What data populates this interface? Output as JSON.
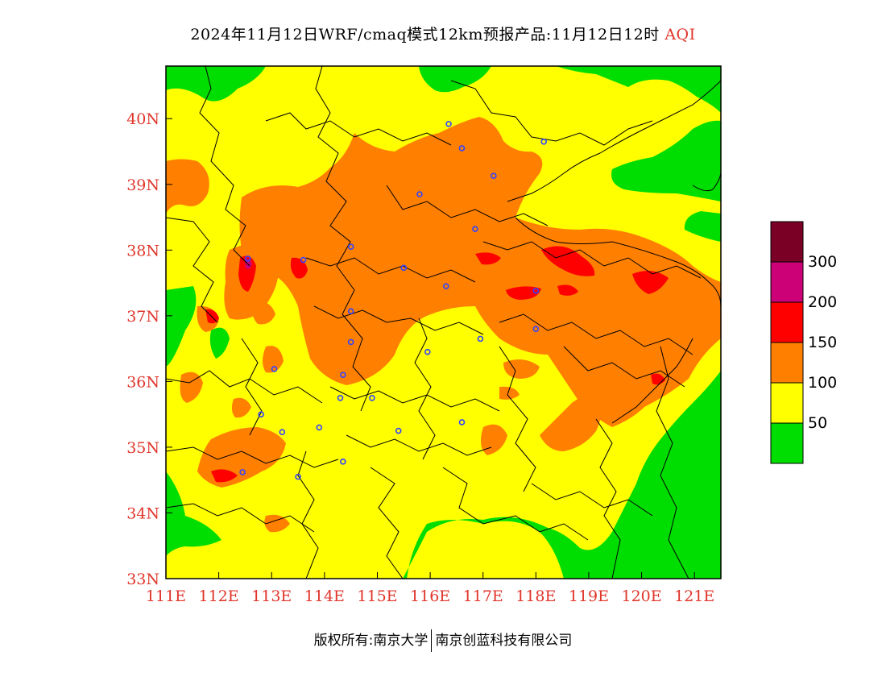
{
  "title": {
    "main": "2024年11月12日WRF/cmaq模式12km预报产品:11月12日12时",
    "variable": "AQI"
  },
  "axes": {
    "lon_ticks": [
      "111E",
      "112E",
      "113E",
      "114E",
      "115E",
      "116E",
      "117E",
      "118E",
      "119E",
      "120E",
      "121E"
    ],
    "lat_ticks": [
      "33N",
      "34N",
      "35N",
      "36N",
      "37N",
      "38N",
      "39N",
      "40N"
    ],
    "lon_range": [
      111,
      121.5
    ],
    "lat_range": [
      33,
      40.8
    ]
  },
  "legend": {
    "labels": [
      "50",
      "100",
      "150",
      "200",
      "300"
    ],
    "colors": [
      "#00dd00",
      "#ffff00",
      "#ff7f00",
      "#ff0000",
      "#cc0077",
      "#7a0026"
    ]
  },
  "copyright": {
    "left": "版权所有:南京大学",
    "right": "南京创蓝科技有限公司"
  },
  "map_layers": {
    "background": "#ffff00",
    "green": "#00dd00",
    "orange": "#ff7f00",
    "red": "#ff0000",
    "magenta": "#cc0077",
    "boundary": "#000000",
    "station_marker": "#3344ff"
  },
  "chart_data": {
    "type": "heatmap",
    "title": "2024年11月12日WRF/cmaq模式12km预报产品:11月12日12时 AQI",
    "xlabel": "",
    "ylabel": "",
    "xlim": [
      111,
      121.5
    ],
    "ylim": [
      33,
      40.8
    ],
    "x_ticks": [
      111,
      112,
      113,
      114,
      115,
      116,
      117,
      118,
      119,
      120,
      121
    ],
    "y_ticks": [
      33,
      34,
      35,
      36,
      37,
      38,
      39,
      40
    ],
    "color_scale": {
      "breaks": [
        50,
        100,
        150,
        200,
        300
      ],
      "colors": [
        "#00dd00",
        "#ffff00",
        "#ff7f00",
        "#ff0000",
        "#cc0077",
        "#7a0026"
      ]
    },
    "stations": [
      [
        116.35,
        39.92
      ],
      [
        116.6,
        39.55
      ],
      [
        117.2,
        39.13
      ],
      [
        118.15,
        39.65
      ],
      [
        115.8,
        38.85
      ],
      [
        116.85,
        38.32
      ],
      [
        114.5,
        38.05
      ],
      [
        112.55,
        37.87
      ],
      [
        113.6,
        37.85
      ],
      [
        115.5,
        37.73
      ],
      [
        116.3,
        37.45
      ],
      [
        118.0,
        37.38
      ],
      [
        114.5,
        37.07
      ],
      [
        118.0,
        36.8
      ],
      [
        116.95,
        36.65
      ],
      [
        114.5,
        36.6
      ],
      [
        115.95,
        36.45
      ],
      [
        113.05,
        36.19
      ],
      [
        114.35,
        36.1
      ],
      [
        114.3,
        35.75
      ],
      [
        114.9,
        35.75
      ],
      [
        112.8,
        35.5
      ],
      [
        113.9,
        35.3
      ],
      [
        113.2,
        35.23
      ],
      [
        115.4,
        35.25
      ],
      [
        116.6,
        35.38
      ],
      [
        114.35,
        34.78
      ],
      [
        112.45,
        34.62
      ],
      [
        113.5,
        34.55
      ]
    ]
  }
}
